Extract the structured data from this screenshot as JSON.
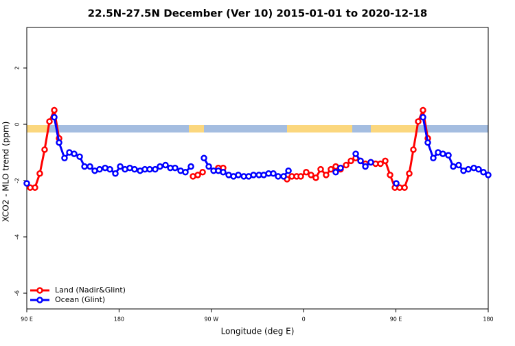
{
  "chart_data": {
    "type": "line",
    "title": "22.5N-27.5N December (Ver 10)   2015-01-01 to 2020-12-18",
    "x_label": "Longitude (deg E)",
    "y_label": "XCO2 - MLO trend (ppm)",
    "xlim": [
      90,
      540
    ],
    "xticks": [
      {
        "value": 90,
        "label": "90 E"
      },
      {
        "value": 180,
        "label": "180"
      },
      {
        "value": 270,
        "label": "90 W"
      },
      {
        "value": 360,
        "label": "0"
      },
      {
        "value": 450,
        "label": "90 E"
      },
      {
        "value": 540,
        "label": "180"
      }
    ],
    "ylim": [
      -6.56,
      3.44
    ],
    "yticks": [
      2,
      0,
      -2,
      -4,
      -6
    ],
    "legend": "bottom-left",
    "series": [
      {
        "name": "Land (Nadir&Glint)",
        "color": "#ff0000",
        "x": [
          93.3,
          98.0,
          102.7,
          107.4,
          112.1,
          116.8,
          121.5,
          null,
          252.1,
          256.8,
          261.5,
          null,
          276.8,
          281.5,
          null,
          343.8,
          348.5,
          353.2,
          357.2,
          362.5,
          367.2,
          371.9,
          376.6,
          381.9,
          386.6,
          391.3,
          396.0,
          401.4,
          406.1,
          410.8,
          415.5,
          420.2,
          425.5,
          430.2,
          434.9,
          439.6,
          444.3,
          449.0,
          453.7,
          458.4,
          463.0,
          467.0,
          471.7,
          476.4,
          481.1
        ],
        "values": [
          -2.25,
          -2.25,
          -1.75,
          -0.9,
          0.1,
          0.5,
          -0.5,
          null,
          -1.85,
          -1.8,
          -1.7,
          null,
          -1.55,
          -1.55,
          null,
          -1.95,
          -1.85,
          -1.85,
          -1.85,
          -1.7,
          -1.8,
          -1.9,
          -1.6,
          -1.8,
          -1.6,
          -1.5,
          -1.6,
          -1.45,
          -1.3,
          -1.2,
          -1.3,
          -1.4,
          -1.35,
          -1.4,
          -1.4,
          -1.3,
          -1.8,
          -2.25,
          -2.25,
          -2.25,
          -1.75,
          -0.9,
          0.1,
          0.5,
          -0.5
        ]
      },
      {
        "name": "Ocean (Glint)",
        "color": "#0000ff",
        "x": [
          90,
          null,
          116.8,
          121.5,
          126.8,
          131.5,
          136.2,
          141.6,
          146.3,
          151.6,
          156.3,
          161.0,
          166.4,
          171.1,
          176.4,
          181.1,
          185.8,
          190.5,
          195.1,
          200.5,
          205.2,
          209.9,
          215.2,
          219.9,
          225.3,
          230.0,
          234.6,
          240.0,
          244.7,
          250.1,
          null,
          262.8,
          267.5,
          272.2,
          276.8,
          281.5,
          286.9,
          291.6,
          296.3,
          301.7,
          306.4,
          311.1,
          316.4,
          321.1,
          325.8,
          330.4,
          335.1,
          340.5,
          345.2,
          null,
          391.3,
          396.0,
          null,
          410.8,
          415.5,
          420.2,
          425.5,
          null,
          450.3,
          null,
          476.4,
          481.1,
          486.4,
          491.1,
          495.8,
          501.2,
          505.9,
          511.2,
          515.9,
          520.6,
          526.0,
          530.6,
          535.3,
          540
        ],
        "values": [
          -2.1,
          null,
          0.25,
          -0.65,
          -1.2,
          -1.0,
          -1.05,
          -1.15,
          -1.5,
          -1.5,
          -1.65,
          -1.6,
          -1.55,
          -1.6,
          -1.75,
          -1.5,
          -1.6,
          -1.55,
          -1.6,
          -1.65,
          -1.6,
          -1.6,
          -1.6,
          -1.5,
          -1.45,
          -1.55,
          -1.55,
          -1.65,
          -1.7,
          -1.5,
          null,
          -1.2,
          -1.5,
          -1.65,
          -1.65,
          -1.7,
          -1.8,
          -1.85,
          -1.8,
          -1.85,
          -1.85,
          -1.8,
          -1.8,
          -1.8,
          -1.75,
          -1.75,
          -1.85,
          -1.85,
          -1.65,
          null,
          -1.7,
          -1.55,
          null,
          -1.05,
          -1.3,
          -1.5,
          -1.35,
          null,
          -2.1,
          null,
          0.25,
          -0.65,
          -1.2,
          -1.0,
          -1.05,
          -1.1,
          -1.5,
          -1.45,
          -1.65,
          -1.6,
          -1.55,
          -1.6,
          -1.7,
          -1.8
        ]
      }
    ]
  }
}
